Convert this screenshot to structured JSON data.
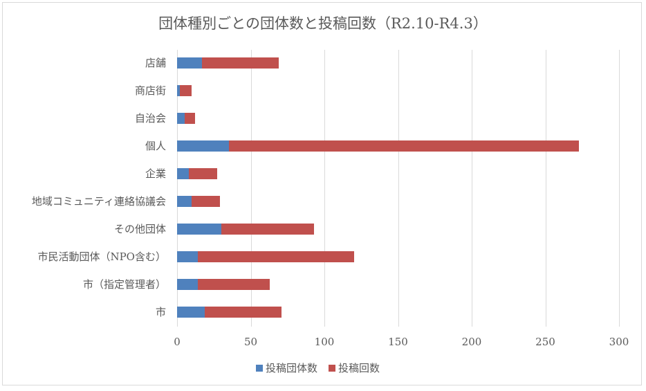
{
  "chart_data": {
    "type": "bar",
    "orientation": "horizontal",
    "stacked": true,
    "title": "団体種別ごとの団体数と投稿回数（R2.10-R4.3）",
    "xlabel": "",
    "ylabel": "",
    "xlim": [
      0,
      300
    ],
    "x_ticks": [
      "0",
      "50",
      "100",
      "150",
      "200",
      "250",
      "300"
    ],
    "grid": true,
    "legend_position": "bottom",
    "categories": [
      "店舗",
      "商店街",
      "自治会",
      "個人",
      "企業",
      "地域コミュニティ連絡協議会",
      "その他団体",
      "市民活動団体（NPO含む）",
      "市（指定管理者）",
      "市"
    ],
    "series": [
      {
        "name": "投稿団体数",
        "color": "#4f81bd",
        "values": [
          17,
          2,
          5,
          35,
          8,
          10,
          30,
          14,
          14,
          19
        ]
      },
      {
        "name": "投稿回数",
        "color": "#c0504d",
        "values": [
          52,
          8,
          7,
          238,
          19,
          19,
          63,
          106,
          49,
          52
        ]
      }
    ]
  }
}
